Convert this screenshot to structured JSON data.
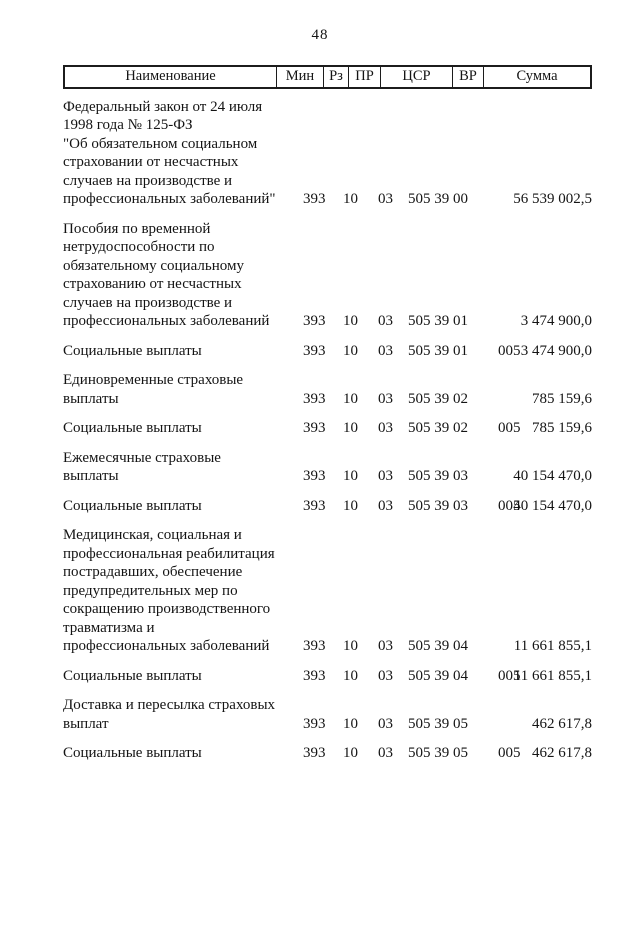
{
  "page": {
    "number": "48"
  },
  "table": {
    "headers": [
      "Наименование",
      "Мин",
      "Рз",
      "ПР",
      "ЦСР",
      "ВР",
      "Сумма"
    ],
    "rows": [
      {
        "kind": "item",
        "name": "Федеральный закон от 24 июля\n1998 года № 125-ФЗ\n\"Об обязательном социальном\nстраховании от несчастных\nслучаев на производстве и\nпрофессиональных заболеваний\"",
        "min": "393",
        "rz": "10",
        "pr": "03",
        "csr": "505 39 00",
        "vr": "",
        "sum": "56 539 002,5"
      },
      {
        "kind": "item",
        "name": "Пособия по временной\nнетрудоспособности по\nобязательному социальному\nстрахованию от несчастных\nслучаев на производстве и\nпрофессиональных заболеваний",
        "min": "393",
        "rz": "10",
        "pr": "03",
        "csr": "505 39 01",
        "vr": "",
        "sum": "3 474 900,0"
      },
      {
        "kind": "sub",
        "name": "Социальные выплаты",
        "min": "393",
        "rz": "10",
        "pr": "03",
        "csr": "505 39 01",
        "vr": "005",
        "sum": "3 474 900,0"
      },
      {
        "kind": "item",
        "name": "Единовременные страховые\nвыплаты",
        "min": "393",
        "rz": "10",
        "pr": "03",
        "csr": "505 39 02",
        "vr": "",
        "sum": "785 159,6"
      },
      {
        "kind": "sub",
        "name": "Социальные выплаты",
        "min": "393",
        "rz": "10",
        "pr": "03",
        "csr": "505 39 02",
        "vr": "005",
        "sum": "785 159,6"
      },
      {
        "kind": "item",
        "name": "Ежемесячные страховые\nвыплаты",
        "min": "393",
        "rz": "10",
        "pr": "03",
        "csr": "505 39 03",
        "vr": "",
        "sum": "40 154 470,0"
      },
      {
        "kind": "sub",
        "name": "Социальные выплаты",
        "min": "393",
        "rz": "10",
        "pr": "03",
        "csr": "505 39 03",
        "vr": "005",
        "sum": "40 154 470,0"
      },
      {
        "kind": "item",
        "name": "Медицинская, социальная и\nпрофессиональная реабилитация\nпострадавших, обеспечение\nпредупредительных мер по\nсокращению производственного\nтравматизма и\nпрофессиональных заболеваний",
        "min": "393",
        "rz": "10",
        "pr": "03",
        "csr": "505 39 04",
        "vr": "",
        "sum": "11 661 855,1"
      },
      {
        "kind": "sub",
        "name": "Социальные выплаты",
        "min": "393",
        "rz": "10",
        "pr": "03",
        "csr": "505 39 04",
        "vr": "005",
        "sum": "11 661 855,1"
      },
      {
        "kind": "item",
        "name": "Доставка и пересылка страховых\nвыплат",
        "min": "393",
        "rz": "10",
        "pr": "03",
        "csr": "505 39 05",
        "vr": "",
        "sum": "462 617,8"
      },
      {
        "kind": "sub",
        "name": "Социальные выплаты",
        "min": "393",
        "rz": "10",
        "pr": "03",
        "csr": "505 39 05",
        "vr": "005",
        "sum": "462 617,8"
      }
    ]
  }
}
